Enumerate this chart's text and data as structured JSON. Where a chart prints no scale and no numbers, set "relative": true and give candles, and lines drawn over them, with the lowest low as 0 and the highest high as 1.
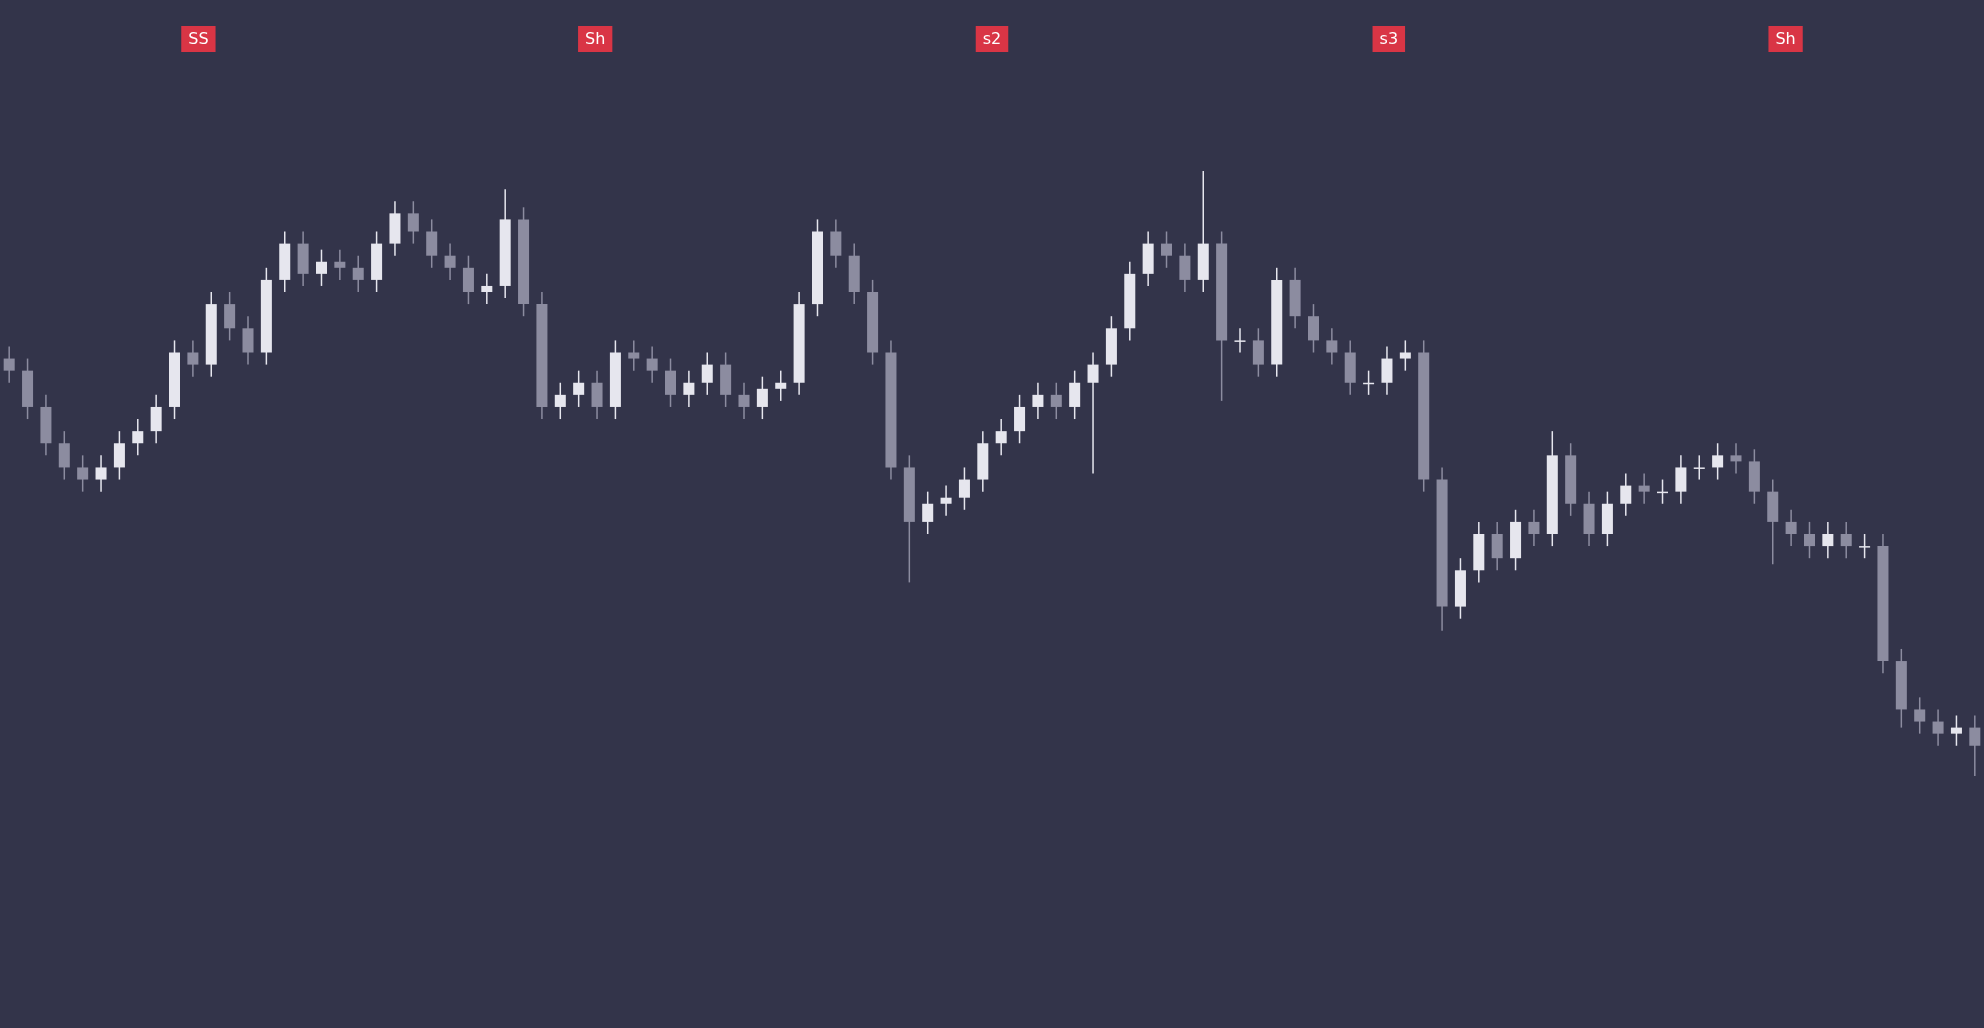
{
  "chart_data": {
    "type": "candlestick",
    "relative": true,
    "colors": [
      "#8c8ca0",
      "#8c8ca0",
      "#8c8ca0",
      "#8c8ca0",
      "#8c8ca0",
      "#e6e6ee",
      "#e6e6ee",
      "#e6e6ee",
      "#e6e6ee",
      "#e6e6ee",
      "#8c8ca0",
      "#e6e6ee",
      "#8c8ca0",
      "#8c8ca0",
      "#e6e6ee",
      "#e6e6ee",
      "#8c8ca0",
      "#e6e6ee",
      "#8c8ca0",
      "#8c8ca0",
      "#e6e6ee",
      "#e6e6ee",
      "#8c8ca0",
      "#8c8ca0",
      "#8c8ca0",
      "#8c8ca0",
      "#e6e6ee",
      "#e6e6ee",
      "#8c8ca0",
      "#8c8ca0",
      "#e6e6ee",
      "#e6e6ee",
      "#8c8ca0",
      "#e6e6ee",
      "#8c8ca0",
      "#8c8ca0",
      "#8c8ca0",
      "#e6e6ee",
      "#e6e6ee",
      "#8c8ca0",
      "#8c8ca0",
      "#e6e6ee",
      "#e6e6ee",
      "#e6e6ee",
      "#e6e6ee",
      "#8c8ca0",
      "#8c8ca0",
      "#8c8ca0",
      "#8c8ca0",
      "#8c8ca0",
      "#e6e6ee",
      "#e6e6ee",
      "#e6e6ee",
      "#e6e6ee",
      "#e6e6ee",
      "#e6e6ee",
      "#e6e6ee",
      "#8c8ca0",
      "#e6e6ee",
      "#e6e6ee",
      "#e6e6ee",
      "#e6e6ee",
      "#e6e6ee",
      "#8c8ca0",
      "#8c8ca0",
      "#e6e6ee",
      "#8c8ca0",
      "#e6e6ee",
      "#8c8ca0",
      "#e6e6ee",
      "#8c8ca0",
      "#8c8ca0",
      "#8c8ca0",
      "#8c8ca0",
      "#e6e6ee",
      "#e6e6ee",
      "#e6e6ee",
      "#8c8ca0",
      "#8c8ca0",
      "#e6e6ee",
      "#e6e6ee",
      "#8c8ca0",
      "#e6e6ee",
      "#8c8ca0",
      "#e6e6ee",
      "#8c8ca0",
      "#8c8ca0",
      "#e6e6ee",
      "#e6e6ee",
      "#8c8ca0",
      "#e6e6ee",
      "#e6e6ee",
      "#e6e6ee",
      "#e6e6ee",
      "#8c8ca0",
      "#8c8ca0",
      "#8c8ca0",
      "#8c8ca0",
      "#8c8ca0",
      "#e6e6ee",
      "#8c8ca0",
      "#e6e6ee",
      "#8c8ca0",
      "#8c8ca0",
      "#8c8ca0",
      "#8c8ca0",
      "#e6e6ee",
      "#8c8ca0"
    ],
    "categories": [
      null,
      null,
      null,
      null,
      null,
      null,
      null,
      null,
      null,
      null,
      null,
      null,
      null,
      null,
      null,
      null,
      null,
      null,
      null,
      null,
      null,
      null,
      null,
      null,
      null,
      null,
      null,
      null,
      null,
      null,
      null,
      null,
      null,
      null,
      null,
      null,
      null,
      null,
      null,
      null,
      null,
      null,
      null,
      null,
      null,
      null,
      null,
      null,
      null,
      null,
      null,
      null,
      null,
      null,
      null,
      null,
      null,
      null,
      null,
      null,
      null,
      null,
      null,
      null,
      null,
      null,
      null,
      null,
      null,
      null,
      null,
      null,
      null,
      null,
      null,
      null,
      null,
      null,
      null,
      null,
      null,
      null,
      null,
      null,
      null,
      null,
      null,
      null,
      null,
      null,
      null,
      null,
      null,
      null,
      null,
      null,
      null,
      null,
      null,
      null,
      null,
      null,
      null,
      null,
      null,
      null,
      null,
      null
    ],
    "ohlc": [
      [
        0.69,
        0.71,
        0.65,
        0.67
      ],
      [
        0.67,
        0.69,
        0.59,
        0.61
      ],
      [
        0.61,
        0.63,
        0.53,
        0.55
      ],
      [
        0.55,
        0.57,
        0.49,
        0.51
      ],
      [
        0.51,
        0.53,
        0.47,
        0.49
      ],
      [
        0.49,
        0.53,
        0.47,
        0.51
      ],
      [
        0.51,
        0.57,
        0.49,
        0.55
      ],
      [
        0.55,
        0.59,
        0.53,
        0.57
      ],
      [
        0.57,
        0.63,
        0.55,
        0.61
      ],
      [
        0.61,
        0.72,
        0.59,
        0.7
      ],
      [
        0.7,
        0.72,
        0.66,
        0.68
      ],
      [
        0.68,
        0.8,
        0.66,
        0.78
      ],
      [
        0.78,
        0.8,
        0.72,
        0.74
      ],
      [
        0.74,
        0.76,
        0.68,
        0.7
      ],
      [
        0.7,
        0.84,
        0.68,
        0.82
      ],
      [
        0.82,
        0.9,
        0.8,
        0.88
      ],
      [
        0.88,
        0.9,
        0.81,
        0.83
      ],
      [
        0.83,
        0.87,
        0.81,
        0.85
      ],
      [
        0.85,
        0.87,
        0.82,
        0.84
      ],
      [
        0.84,
        0.86,
        0.8,
        0.82
      ],
      [
        0.82,
        0.9,
        0.8,
        0.88
      ],
      [
        0.88,
        0.95,
        0.86,
        0.93
      ],
      [
        0.93,
        0.95,
        0.88,
        0.9
      ],
      [
        0.9,
        0.92,
        0.84,
        0.86
      ],
      [
        0.86,
        0.88,
        0.82,
        0.84
      ],
      [
        0.84,
        0.86,
        0.78,
        0.8
      ],
      [
        0.8,
        0.83,
        0.78,
        0.81
      ],
      [
        0.81,
        0.97,
        0.79,
        0.92
      ],
      [
        0.92,
        0.94,
        0.76,
        0.78
      ],
      [
        0.78,
        0.8,
        0.59,
        0.61
      ],
      [
        0.61,
        0.65,
        0.59,
        0.63
      ],
      [
        0.63,
        0.67,
        0.61,
        0.65
      ],
      [
        0.65,
        0.67,
        0.59,
        0.61
      ],
      [
        0.61,
        0.72,
        0.59,
        0.7
      ],
      [
        0.7,
        0.72,
        0.67,
        0.69
      ],
      [
        0.69,
        0.71,
        0.65,
        0.67
      ],
      [
        0.67,
        0.69,
        0.61,
        0.63
      ],
      [
        0.63,
        0.67,
        0.61,
        0.65
      ],
      [
        0.65,
        0.7,
        0.63,
        0.68
      ],
      [
        0.68,
        0.7,
        0.61,
        0.63
      ],
      [
        0.63,
        0.65,
        0.59,
        0.61
      ],
      [
        0.61,
        0.66,
        0.59,
        0.64
      ],
      [
        0.64,
        0.67,
        0.62,
        0.65
      ],
      [
        0.65,
        0.8,
        0.63,
        0.78
      ],
      [
        0.78,
        0.92,
        0.76,
        0.9
      ],
      [
        0.9,
        0.92,
        0.84,
        0.86
      ],
      [
        0.86,
        0.88,
        0.78,
        0.8
      ],
      [
        0.8,
        0.82,
        0.68,
        0.7
      ],
      [
        0.7,
        0.72,
        0.49,
        0.51
      ],
      [
        0.51,
        0.53,
        0.32,
        0.42
      ],
      [
        0.42,
        0.47,
        0.4,
        0.45
      ],
      [
        0.45,
        0.48,
        0.43,
        0.46
      ],
      [
        0.46,
        0.51,
        0.44,
        0.49
      ],
      [
        0.49,
        0.57,
        0.47,
        0.55
      ],
      [
        0.55,
        0.59,
        0.53,
        0.57
      ],
      [
        0.57,
        0.63,
        0.55,
        0.61
      ],
      [
        0.61,
        0.65,
        0.59,
        0.63
      ],
      [
        0.63,
        0.65,
        0.59,
        0.61
      ],
      [
        0.61,
        0.67,
        0.59,
        0.65
      ],
      [
        0.65,
        0.7,
        0.5,
        0.68
      ],
      [
        0.68,
        0.76,
        0.66,
        0.74
      ],
      [
        0.74,
        0.85,
        0.72,
        0.83
      ],
      [
        0.83,
        0.9,
        0.81,
        0.88
      ],
      [
        0.88,
        0.9,
        0.84,
        0.86
      ],
      [
        0.86,
        0.88,
        0.8,
        0.82
      ],
      [
        0.82,
        1.0,
        0.8,
        0.88
      ],
      [
        0.88,
        0.9,
        0.62,
        0.72
      ],
      [
        0.72,
        0.74,
        0.7,
        0.72
      ],
      [
        0.72,
        0.74,
        0.66,
        0.68
      ],
      [
        0.68,
        0.84,
        0.66,
        0.82
      ],
      [
        0.82,
        0.84,
        0.74,
        0.76
      ],
      [
        0.76,
        0.78,
        0.7,
        0.72
      ],
      [
        0.72,
        0.74,
        0.68,
        0.7
      ],
      [
        0.7,
        0.72,
        0.63,
        0.65
      ],
      [
        0.65,
        0.67,
        0.63,
        0.65
      ],
      [
        0.65,
        0.71,
        0.63,
        0.69
      ],
      [
        0.69,
        0.72,
        0.67,
        0.7
      ],
      [
        0.7,
        0.72,
        0.47,
        0.49
      ],
      [
        0.49,
        0.51,
        0.24,
        0.28
      ],
      [
        0.28,
        0.36,
        0.26,
        0.34
      ],
      [
        0.34,
        0.42,
        0.32,
        0.4
      ],
      [
        0.4,
        0.42,
        0.34,
        0.36
      ],
      [
        0.36,
        0.44,
        0.34,
        0.42
      ],
      [
        0.42,
        0.44,
        0.38,
        0.4
      ],
      [
        0.4,
        0.57,
        0.38,
        0.53
      ],
      [
        0.53,
        0.55,
        0.43,
        0.45
      ],
      [
        0.45,
        0.47,
        0.38,
        0.4
      ],
      [
        0.4,
        0.47,
        0.38,
        0.45
      ],
      [
        0.45,
        0.5,
        0.43,
        0.48
      ],
      [
        0.48,
        0.5,
        0.45,
        0.47
      ],
      [
        0.47,
        0.49,
        0.45,
        0.47
      ],
      [
        0.47,
        0.53,
        0.45,
        0.51
      ],
      [
        0.51,
        0.53,
        0.49,
        0.51
      ],
      [
        0.51,
        0.55,
        0.49,
        0.53
      ],
      [
        0.53,
        0.55,
        0.5,
        0.52
      ],
      [
        0.52,
        0.54,
        0.45,
        0.47
      ],
      [
        0.47,
        0.49,
        0.35,
        0.42
      ],
      [
        0.42,
        0.44,
        0.38,
        0.4
      ],
      [
        0.4,
        0.42,
        0.36,
        0.38
      ],
      [
        0.38,
        0.42,
        0.36,
        0.4
      ],
      [
        0.4,
        0.42,
        0.36,
        0.38
      ],
      [
        0.38,
        0.4,
        0.36,
        0.38
      ],
      [
        0.38,
        0.4,
        0.17,
        0.19
      ],
      [
        0.19,
        0.21,
        0.08,
        0.11
      ],
      [
        0.11,
        0.13,
        0.07,
        0.09
      ],
      [
        0.09,
        0.11,
        0.05,
        0.07
      ],
      [
        0.07,
        0.1,
        0.05,
        0.08
      ],
      [
        0.08,
        0.1,
        0.0,
        0.05
      ]
    ],
    "annotations": [
      "SS",
      "Sh",
      "s2",
      "s3",
      "Sh"
    ]
  }
}
